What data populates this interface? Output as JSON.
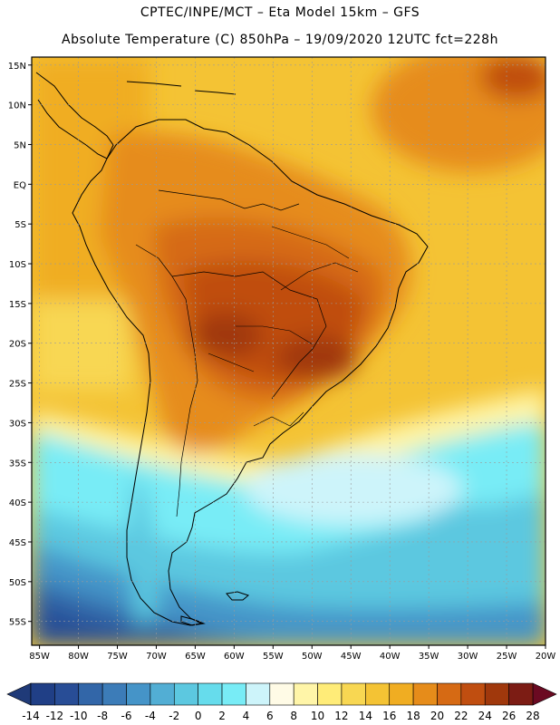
{
  "header": {
    "line1": "CPTEC/INPE/MCT –  Eta Model 15km – GFS",
    "line2": "Absolute Temperature (C) 850hPa – 19/09/2020 12UTC fct=228h"
  },
  "map": {
    "lat_labels": [
      "15N",
      "10N",
      "5N",
      "EQ",
      "5S",
      "10S",
      "15S",
      "20S",
      "25S",
      "30S",
      "35S",
      "40S",
      "45S",
      "50S",
      "55S"
    ],
    "lon_labels": [
      "85W",
      "80W",
      "75W",
      "70W",
      "65W",
      "60W",
      "55W",
      "50W",
      "45W",
      "40W",
      "35W",
      "30W",
      "25W",
      "20W"
    ],
    "lat_values": [
      15,
      10,
      5,
      0,
      -5,
      -10,
      -15,
      -20,
      -25,
      -30,
      -35,
      -40,
      -45,
      -50,
      -55
    ],
    "lon_values": [
      -85,
      -80,
      -75,
      -70,
      -65,
      -60,
      -55,
      -50,
      -45,
      -40,
      -35,
      -30,
      -25,
      -20
    ],
    "lat_range": [
      -58,
      16
    ],
    "lon_range": [
      -86,
      -20
    ]
  },
  "colorbar": {
    "ticks": [
      "-14",
      "-12",
      "-10",
      "-8",
      "-6",
      "-4",
      "-2",
      "0",
      "2",
      "4",
      "6",
      "8",
      "10",
      "12",
      "14",
      "16",
      "18",
      "20",
      "22",
      "24",
      "26",
      "28"
    ],
    "under_color": "#1f3a78",
    "over_color": "#6b0a22",
    "colors": [
      "#203f86",
      "#284d96",
      "#3266a8",
      "#3c7cb8",
      "#4594c8",
      "#52aed4",
      "#5cc8e0",
      "#66dcec",
      "#78ecf6",
      "#cdf4fa",
      "#fffbe6",
      "#fff5a8",
      "#ffec78",
      "#f8d752",
      "#f4c334",
      "#f0ad22",
      "#e68c1a",
      "#d66a14",
      "#c04e10",
      "#a0380c",
      "#7c1c14"
    ]
  },
  "colors": {
    "land_outline": "#000000",
    "gridline": "#9a9a9a"
  }
}
